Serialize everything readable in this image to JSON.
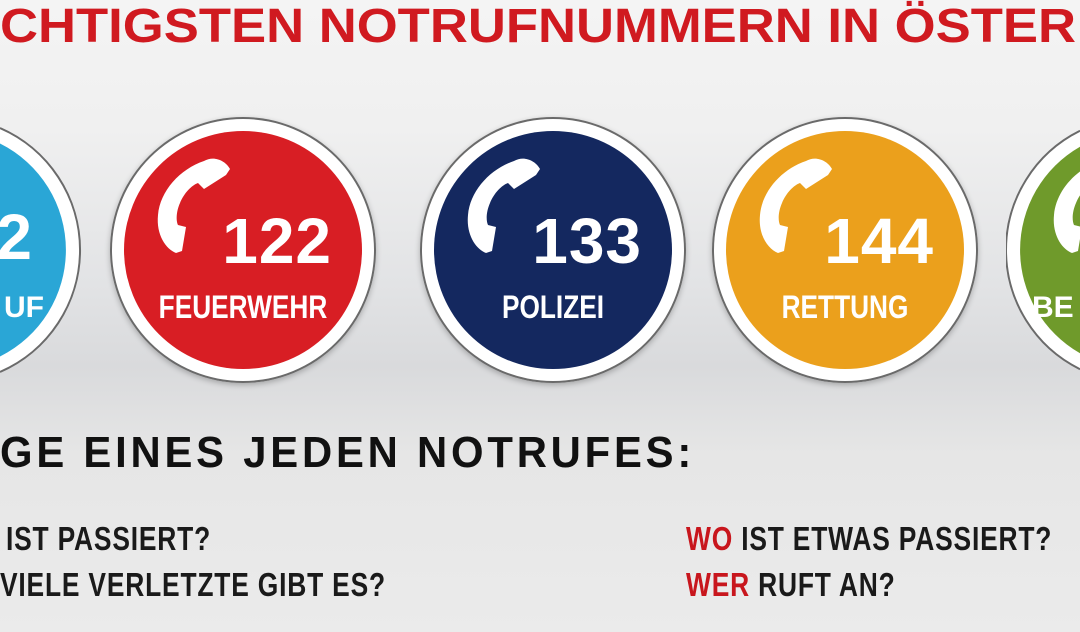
{
  "title": "CHTIGSTEN NOTRUFNUMMERN IN ÖSTER",
  "circles": [
    {
      "number": "2",
      "label": "UF",
      "color": "#2aa6d6"
    },
    {
      "number": "122",
      "label": "FEUERWEHR",
      "color": "#d81e24"
    },
    {
      "number": "133",
      "label": "POLIZEI",
      "color": "#14285f"
    },
    {
      "number": "144",
      "label": "RETTUNG",
      "color": "#eba01c"
    },
    {
      "number": "",
      "label": "BE",
      "color": "#6f9a2b"
    }
  ],
  "subheading": "GE EINES JEDEN NOTRUFES:",
  "questions": {
    "left": [
      {
        "keyword": "",
        "text": "IST PASSIERT?"
      },
      {
        "keyword": "",
        "text": "VIELE VERLETZTE GIBT ES?"
      }
    ],
    "right": [
      {
        "keyword": "WO",
        "text": " IST ETWAS PASSIERT?"
      },
      {
        "keyword": "WER",
        "text": " RUFT AN?"
      }
    ]
  },
  "icons": {
    "phone": "phone-handset-icon"
  }
}
